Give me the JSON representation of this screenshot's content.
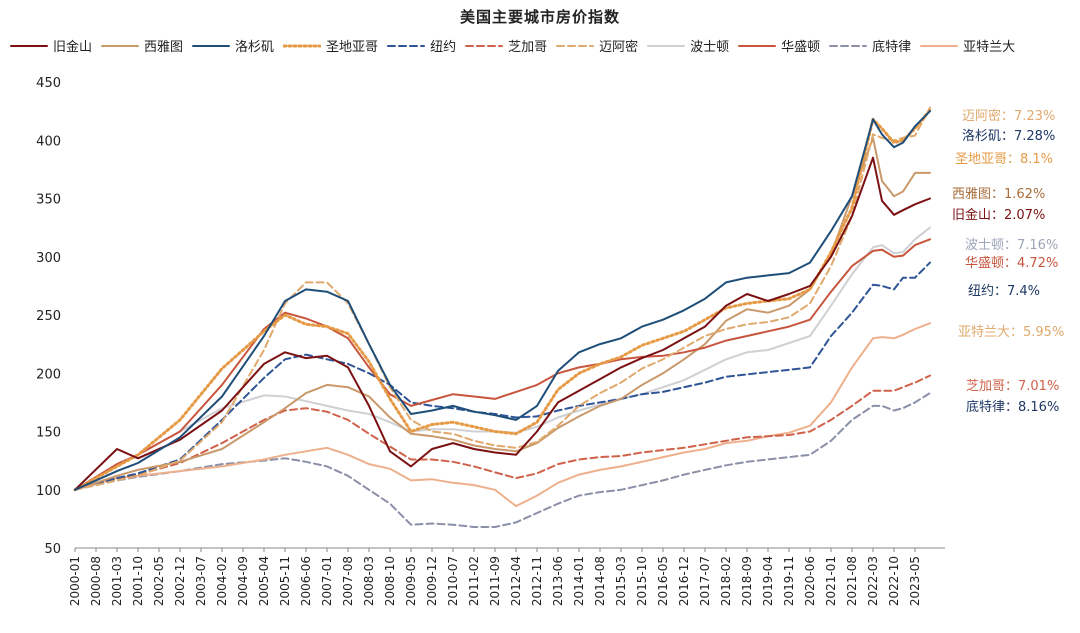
{
  "chart_data": {
    "type": "line",
    "title": "美国主要城市房价指数",
    "xlabel": "",
    "ylabel": "",
    "ylim": [
      50,
      450
    ],
    "yticks": [
      50,
      100,
      150,
      200,
      250,
      300,
      350,
      400,
      450
    ],
    "xlim": [
      "2000-01",
      "2024-03"
    ],
    "xticks": [
      "2000-01",
      "2000-08",
      "2001-03",
      "2001-10",
      "2002-05",
      "2002-12",
      "2003-07",
      "2004-02",
      "2004-09",
      "2005-04",
      "2005-11",
      "2006-06",
      "2007-01",
      "2007-08",
      "2008-03",
      "2008-10",
      "2009-05",
      "2009-12",
      "2010-07",
      "2011-02",
      "2011-09",
      "2012-04",
      "2012-11",
      "2013-06",
      "2014-01",
      "2014-08",
      "2015-03",
      "2015-10",
      "2016-05",
      "2016-12",
      "2017-07",
      "2018-02",
      "2018-09",
      "2019-04",
      "2019-11",
      "2020-06",
      "2021-01",
      "2021-08",
      "2022-03",
      "2022-10",
      "2023-05"
    ],
    "grid": false,
    "legend_position": "top",
    "x": [
      "2000-01",
      "2001-03",
      "2001-10",
      "2002-12",
      "2004-02",
      "2005-04",
      "2005-11",
      "2006-06",
      "2007-01",
      "2007-08",
      "2008-03",
      "2008-10",
      "2009-05",
      "2009-12",
      "2010-07",
      "2011-02",
      "2011-09",
      "2012-04",
      "2012-11",
      "2013-06",
      "2014-01",
      "2014-08",
      "2015-03",
      "2015-10",
      "2016-05",
      "2016-12",
      "2017-07",
      "2018-02",
      "2018-09",
      "2019-04",
      "2019-11",
      "2020-06",
      "2021-01",
      "2021-08",
      "2022-03",
      "2022-06",
      "2022-10",
      "2023-01",
      "2023-05",
      "2023-10"
    ],
    "series": [
      {
        "name": "旧金山",
        "color": "#7b1113",
        "dash": "solid",
        "values": [
          100,
          135,
          127,
          143,
          168,
          208,
          218,
          213,
          215,
          205,
          172,
          133,
          120,
          135,
          140,
          135,
          132,
          130,
          150,
          175,
          185,
          195,
          205,
          213,
          220,
          230,
          240,
          258,
          268,
          262,
          268,
          275,
          300,
          335,
          385,
          348,
          336,
          340,
          345,
          350
        ]
      },
      {
        "name": "西雅图",
        "color": "#c9996b",
        "dash": "solid",
        "values": [
          100,
          112,
          117,
          124,
          135,
          158,
          170,
          183,
          190,
          188,
          180,
          162,
          148,
          146,
          143,
          138,
          135,
          133,
          140,
          153,
          163,
          172,
          178,
          190,
          200,
          212,
          225,
          245,
          255,
          252,
          258,
          272,
          302,
          352,
          402,
          365,
          352,
          356,
          372,
          372
        ]
      },
      {
        "name": "洛杉矶",
        "color": "#1f4e79",
        "dash": "solid",
        "values": [
          100,
          116,
          123,
          145,
          180,
          232,
          262,
          272,
          270,
          262,
          225,
          190,
          165,
          168,
          172,
          167,
          164,
          160,
          172,
          202,
          218,
          225,
          230,
          240,
          246,
          254,
          264,
          278,
          282,
          284,
          286,
          295,
          322,
          352,
          418,
          405,
          394,
          398,
          412,
          425
        ]
      },
      {
        "name": "圣地亚哥",
        "color": "#e69a45",
        "dash": "dot",
        "values": [
          100,
          120,
          130,
          160,
          204,
          236,
          250,
          242,
          240,
          234,
          210,
          178,
          150,
          156,
          158,
          154,
          150,
          148,
          158,
          186,
          200,
          208,
          214,
          224,
          230,
          236,
          246,
          256,
          260,
          262,
          264,
          272,
          304,
          342,
          418,
          410,
          398,
          400,
          410,
          426
        ]
      },
      {
        "name": "纽约",
        "color": "#2f5597",
        "dash": "dash",
        "values": [
          100,
          110,
          114,
          126,
          160,
          196,
          212,
          216,
          212,
          208,
          200,
          190,
          175,
          172,
          170,
          167,
          165,
          162,
          163,
          168,
          172,
          175,
          178,
          182,
          184,
          188,
          192,
          197,
          199,
          201,
          203,
          205,
          232,
          252,
          276,
          275,
          272,
          282,
          282,
          295
        ]
      },
      {
        "name": "芝加哥",
        "color": "#d0614a",
        "dash": "dash",
        "values": [
          100,
          110,
          113,
          123,
          140,
          160,
          168,
          170,
          167,
          160,
          148,
          137,
          126,
          126,
          124,
          120,
          115,
          110,
          114,
          122,
          126,
          128,
          129,
          132,
          134,
          136,
          139,
          142,
          145,
          146,
          147,
          150,
          160,
          172,
          185,
          185,
          185,
          188,
          192,
          198
        ]
      },
      {
        "name": "迈阿密",
        "color": "#e0a96d",
        "dash": "dash",
        "values": [
          100,
          108,
          112,
          125,
          158,
          220,
          260,
          278,
          278,
          260,
          225,
          188,
          160,
          150,
          148,
          142,
          138,
          136,
          141,
          155,
          172,
          183,
          192,
          204,
          212,
          222,
          232,
          238,
          242,
          244,
          248,
          260,
          292,
          335,
          405,
          402,
          400,
          402,
          404,
          428
        ]
      },
      {
        "name": "波士顿",
        "color": "#cfd0d4",
        "dash": "solid",
        "values": [
          100,
          122,
          130,
          150,
          170,
          181,
          180,
          176,
          172,
          168,
          165,
          158,
          150,
          152,
          152,
          150,
          150,
          149,
          154,
          162,
          168,
          173,
          178,
          182,
          188,
          194,
          203,
          212,
          218,
          220,
          226,
          232,
          258,
          285,
          308,
          310,
          303,
          304,
          315,
          325
        ]
      },
      {
        "name": "华盛顿",
        "color": "#c8553d",
        "dash": "solid",
        "values": [
          100,
          122,
          130,
          150,
          190,
          238,
          252,
          247,
          240,
          230,
          205,
          182,
          172,
          177,
          182,
          180,
          178,
          184,
          190,
          200,
          205,
          208,
          212,
          214,
          215,
          218,
          222,
          228,
          232,
          236,
          240,
          246,
          270,
          292,
          305,
          306,
          300,
          301,
          310,
          315
        ]
      },
      {
        "name": "底特律",
        "color": "#8b90a8",
        "dash": "dash",
        "values": [
          100,
          108,
          111,
          116,
          122,
          125,
          127,
          124,
          120,
          112,
          100,
          88,
          70,
          71,
          70,
          68,
          68,
          72,
          80,
          88,
          95,
          98,
          100,
          104,
          108,
          113,
          117,
          121,
          124,
          126,
          128,
          130,
          142,
          160,
          172,
          172,
          168,
          170,
          175,
          183
        ]
      },
      {
        "name": "亚特兰大",
        "color": "#eeb08c",
        "dash": "solid",
        "values": [
          100,
          110,
          112,
          116,
          120,
          126,
          130,
          133,
          136,
          130,
          122,
          118,
          108,
          109,
          106,
          104,
          100,
          86,
          95,
          106,
          113,
          117,
          120,
          124,
          128,
          132,
          135,
          140,
          142,
          146,
          149,
          155,
          175,
          205,
          230,
          231,
          230,
          233,
          238,
          243
        ]
      }
    ],
    "annotations": [
      {
        "series": "迈阿密",
        "text": "迈阿密：7.23%",
        "color": "#e0a96d"
      },
      {
        "series": "洛杉矶",
        "text": "洛杉矶：7.28%",
        "color": "#1f3864"
      },
      {
        "series": "圣地亚哥",
        "text": "圣地亚哥：8.1%",
        "color": "#e69a45"
      },
      {
        "series": "西雅图",
        "text": "西雅图：1.62%",
        "color": "#a86d3a"
      },
      {
        "series": "旧金山",
        "text": "旧金山：2.07%",
        "color": "#7b1113"
      },
      {
        "series": "波士顿",
        "text": "波士顿：7.16%",
        "color": "#9da5b8"
      },
      {
        "series": "华盛顿",
        "text": "华盛顿：4.72%",
        "color": "#c8553d"
      },
      {
        "series": "纽约",
        "text": "纽约：7.4%",
        "color": "#1f3864"
      },
      {
        "series": "亚特兰大",
        "text": "亚特兰大：5.95%",
        "color": "#e0a96d"
      },
      {
        "series": "芝加哥",
        "text": "芝加哥：7.01%",
        "color": "#d0614a"
      },
      {
        "series": "底特律",
        "text": "底特律：8.16%",
        "color": "#1f3864"
      }
    ]
  }
}
